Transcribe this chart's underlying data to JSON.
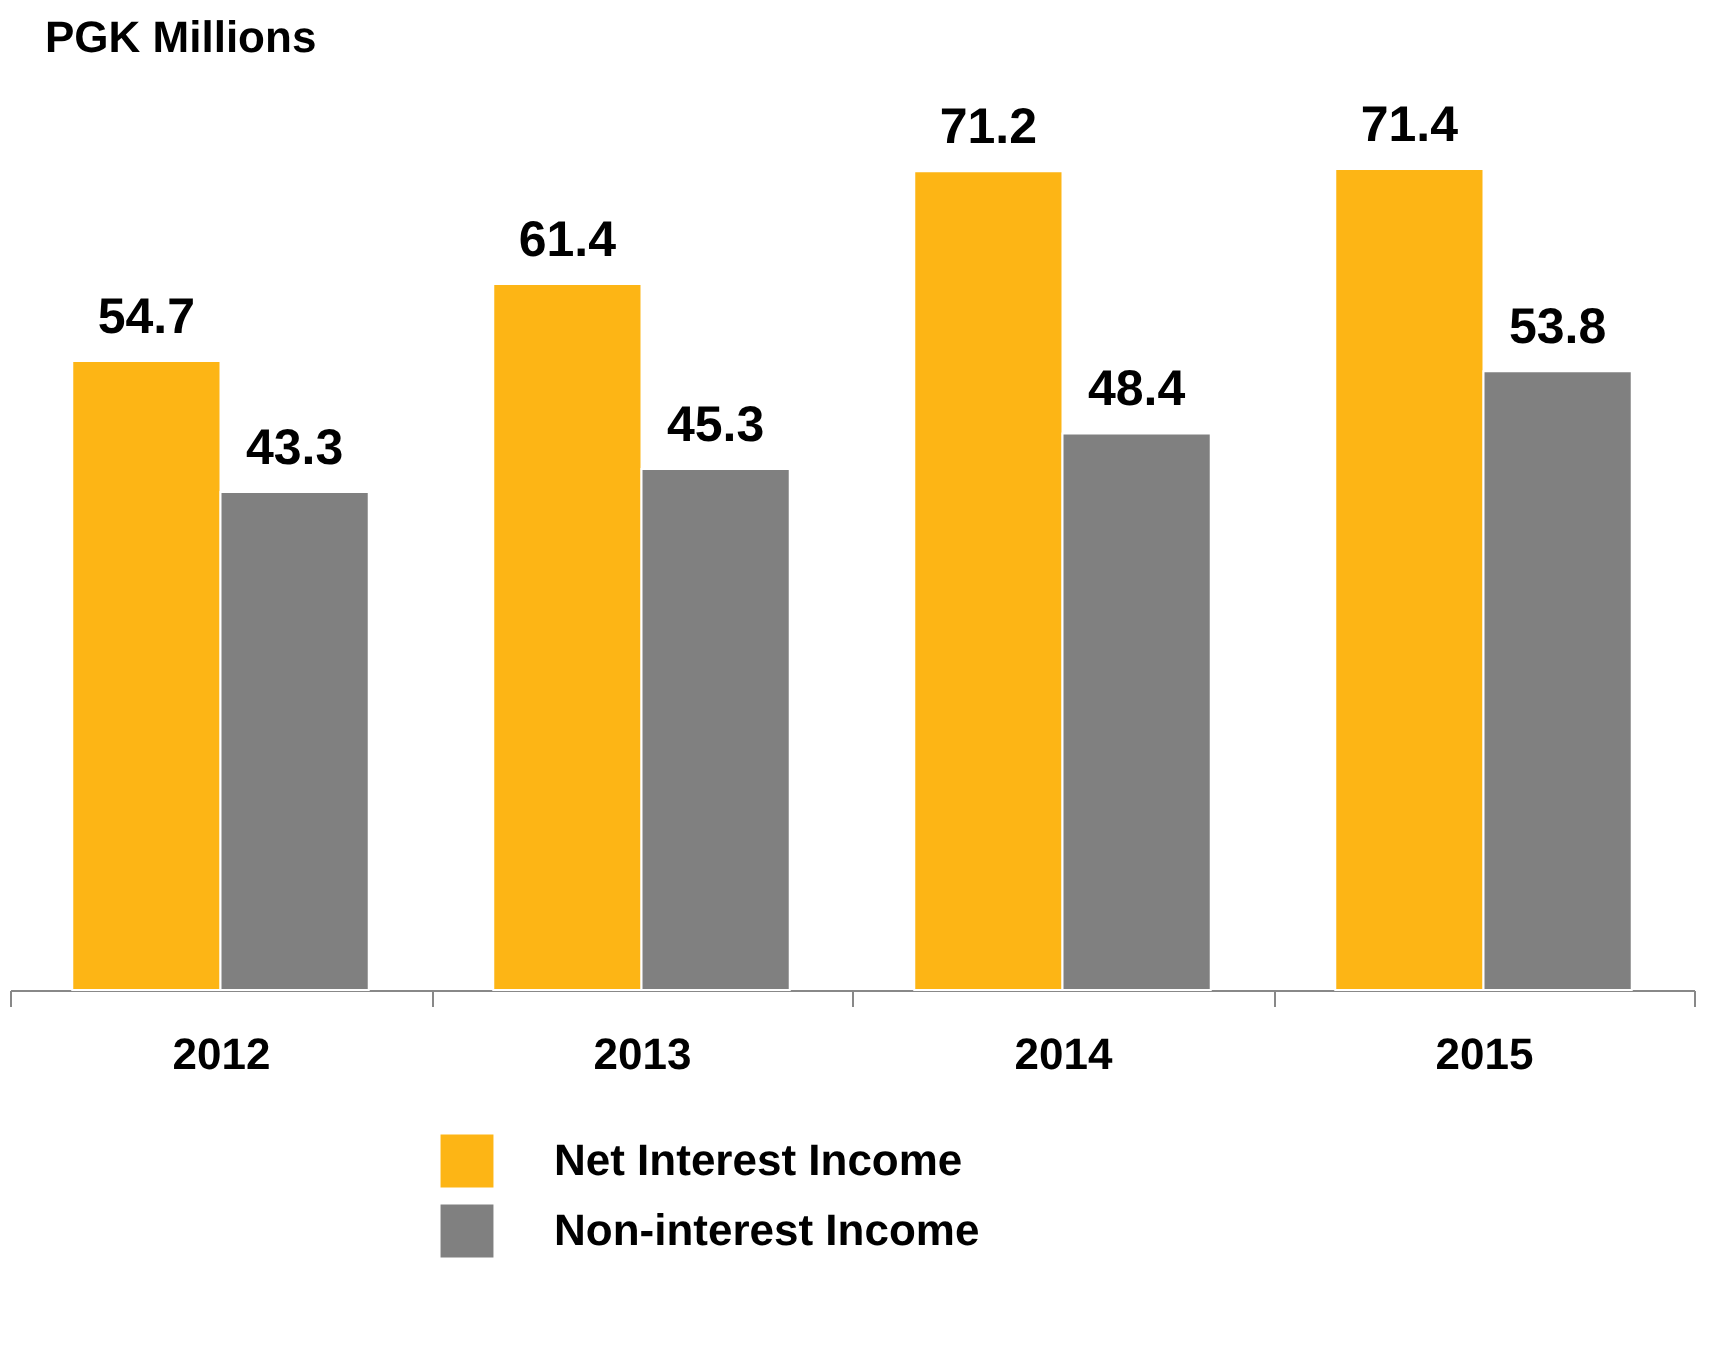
{
  "chart_data": {
    "type": "bar",
    "title": "PGK Millions",
    "categories": [
      "2012",
      "2013",
      "2014",
      "2015"
    ],
    "series": [
      {
        "name": "Net Interest Income",
        "color": "#fdb515",
        "values": [
          54.7,
          61.4,
          71.2,
          71.4
        ]
      },
      {
        "name": "Non-interest Income",
        "color": "#808080",
        "values": [
          43.3,
          45.3,
          48.4,
          53.8
        ]
      }
    ],
    "data_labels": true,
    "legend": "bottom",
    "grid": false
  }
}
